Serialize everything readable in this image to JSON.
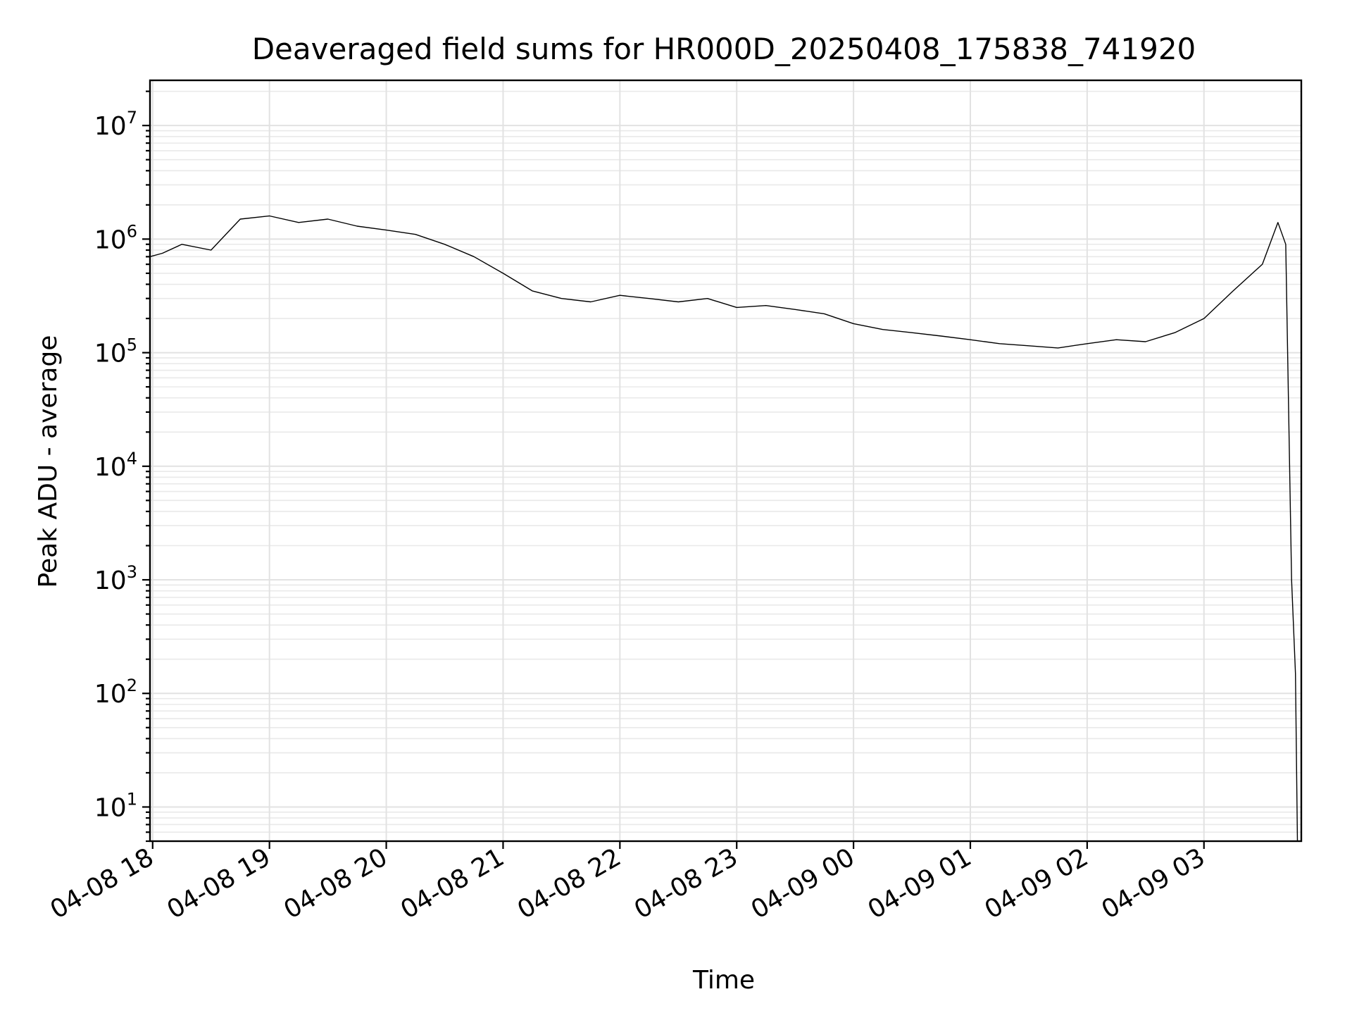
{
  "chart_data": {
    "type": "line",
    "title": "Deaveraged field sums for HR000D_20250408_175838_741920",
    "xlabel": "Time",
    "ylabel": "Peak ADU - average",
    "yscale": "log",
    "ylim": [
      5,
      25000000
    ],
    "xlim": [
      "2025-04-08 17:58:38",
      "2025-04-09 03:50:00"
    ],
    "x_ticks": [
      {
        "label": "04-08 18",
        "time": "2025-04-08 18:00"
      },
      {
        "label": "04-08 19",
        "time": "2025-04-08 19:00"
      },
      {
        "label": "04-08 20",
        "time": "2025-04-08 20:00"
      },
      {
        "label": "04-08 21",
        "time": "2025-04-08 21:00"
      },
      {
        "label": "04-08 22",
        "time": "2025-04-08 22:00"
      },
      {
        "label": "04-08 23",
        "time": "2025-04-08 23:00"
      },
      {
        "label": "04-09 00",
        "time": "2025-04-09 00:00"
      },
      {
        "label": "04-09 01",
        "time": "2025-04-09 01:00"
      },
      {
        "label": "04-09 02",
        "time": "2025-04-09 02:00"
      },
      {
        "label": "04-09 03",
        "time": "2025-04-09 03:00"
      }
    ],
    "y_ticks": [
      {
        "base": "10",
        "exp": "1",
        "value": 10
      },
      {
        "base": "10",
        "exp": "2",
        "value": 100
      },
      {
        "base": "10",
        "exp": "3",
        "value": 1000
      },
      {
        "base": "10",
        "exp": "4",
        "value": 10000
      },
      {
        "base": "10",
        "exp": "5",
        "value": 100000
      },
      {
        "base": "10",
        "exp": "6",
        "value": 1000000
      },
      {
        "base": "10",
        "exp": "7",
        "value": 10000000
      }
    ],
    "grid": true,
    "grid_minor": true,
    "line_color": "#000000",
    "series": [
      {
        "x": [
          "2025-04-08 17:58:38",
          "2025-04-08 18:05",
          "2025-04-08 18:15",
          "2025-04-08 18:30",
          "2025-04-08 18:45",
          "2025-04-08 19:00",
          "2025-04-08 19:15",
          "2025-04-08 19:30",
          "2025-04-08 19:45",
          "2025-04-08 20:00",
          "2025-04-08 20:15",
          "2025-04-08 20:30",
          "2025-04-08 20:45",
          "2025-04-08 21:00",
          "2025-04-08 21:15",
          "2025-04-08 21:30",
          "2025-04-08 21:45",
          "2025-04-08 22:00",
          "2025-04-08 22:15",
          "2025-04-08 22:30",
          "2025-04-08 22:45",
          "2025-04-08 23:00",
          "2025-04-08 23:15",
          "2025-04-08 23:30",
          "2025-04-08 23:45",
          "2025-04-09 00:00",
          "2025-04-09 00:15",
          "2025-04-09 00:30",
          "2025-04-09 00:45",
          "2025-04-09 01:00",
          "2025-04-09 01:15",
          "2025-04-09 01:30",
          "2025-04-09 01:45",
          "2025-04-09 02:00",
          "2025-04-09 02:15",
          "2025-04-09 02:30",
          "2025-04-09 02:45",
          "2025-04-09 03:00",
          "2025-04-09 03:15",
          "2025-04-09 03:30",
          "2025-04-09 03:38",
          "2025-04-09 03:42",
          "2025-04-09 03:45",
          "2025-04-09 03:47",
          "2025-04-09 03:48"
        ],
        "y": [
          700000,
          750000,
          900000,
          800000,
          1500000,
          1600000,
          1400000,
          1500000,
          1300000,
          1200000,
          1100000,
          900000,
          700000,
          500000,
          350000,
          300000,
          280000,
          320000,
          300000,
          280000,
          300000,
          250000,
          260000,
          240000,
          220000,
          180000,
          160000,
          150000,
          140000,
          130000,
          120000,
          115000,
          110000,
          120000,
          130000,
          125000,
          150000,
          200000,
          350000,
          600000,
          1400000,
          900000,
          1000,
          150,
          5
        ]
      }
    ]
  }
}
